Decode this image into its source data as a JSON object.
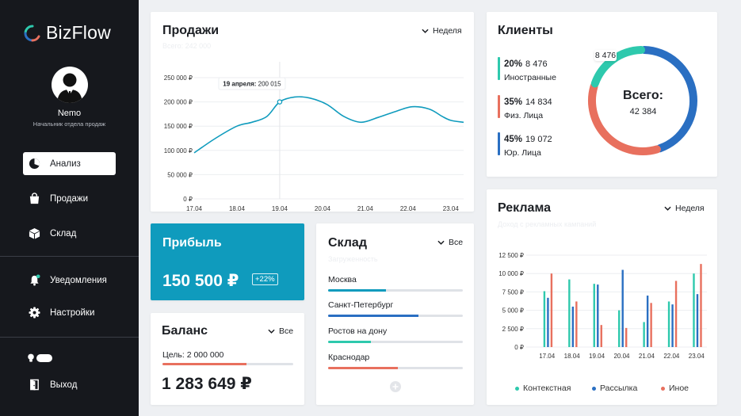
{
  "app": {
    "name": "BizFlow"
  },
  "user": {
    "name": "Nemo",
    "role": "Начальник отдела продаж"
  },
  "nav": {
    "analysis": "Анализ",
    "sales": "Продажи",
    "warehouse": "Склад",
    "notifications": "Уведомления",
    "settings": "Настройки",
    "logout": "Выход"
  },
  "sales": {
    "title": "Продажи",
    "subtitle": "Всего: 242 000",
    "period": "Неделя",
    "tooltip_date": "19 апреля:",
    "tooltip_value": "200 015",
    "y_labels": [
      "250 000 ₽",
      "200 000 ₽",
      "150 000 ₽",
      "100 000 ₽",
      "50 000 ₽",
      "0 ₽"
    ]
  },
  "clients": {
    "title": "Клиенты",
    "total_label": "Всего:",
    "total_value": "42 384",
    "callout": "8 476",
    "items": [
      {
        "pct": "20%",
        "count": "8 476",
        "label": "Иностранные",
        "color": "#2ec9ad"
      },
      {
        "pct": "35%",
        "count": "14 834",
        "label": "Физ. Лица",
        "color": "#e8705e"
      },
      {
        "pct": "45%",
        "count": "19 072",
        "label": "Юр. Лица",
        "color": "#2a6fc2"
      }
    ]
  },
  "profit": {
    "title": "Прибыль",
    "value": "150 500 ₽",
    "badge": "+22%",
    "color": "#0f9bbd"
  },
  "balance": {
    "title": "Баланс",
    "filter": "Все",
    "goal": "Цель: 2 000 000",
    "value": "1 283 649 ₽",
    "progress": 0.64
  },
  "warehouse": {
    "title": "Склад",
    "subtitle": "Загруженность",
    "filter": "Все",
    "items": [
      {
        "name": "Москва",
        "level": 0.43,
        "color": "#0f9bbd"
      },
      {
        "name": "Санкт-Петербург",
        "level": 0.67,
        "color": "#2a6fc2"
      },
      {
        "name": "Ростов на дону",
        "level": 0.32,
        "color": "#2ec9ad"
      },
      {
        "name": "Краснодар",
        "level": 0.52,
        "color": "#e8705e"
      }
    ]
  },
  "ads": {
    "title": "Реклама",
    "subtitle": "Доход с рекламных кампаний",
    "period": "Неделя"
  },
  "chart_data": [
    {
      "type": "line",
      "title": "Продажи",
      "x": [
        "17.04",
        "18.04",
        "19.04",
        "20.04",
        "21.04",
        "22.04",
        "23.04"
      ],
      "points": [
        [
          17.0,
          95000
        ],
        [
          17.5,
          125000
        ],
        [
          18.0,
          150000
        ],
        [
          18.35,
          158000
        ],
        [
          18.7,
          170000
        ],
        [
          19.0,
          200015
        ],
        [
          19.35,
          210000
        ],
        [
          19.7,
          208000
        ],
        [
          20.1,
          195000
        ],
        [
          20.5,
          170000
        ],
        [
          20.9,
          158000
        ],
        [
          21.3,
          168000
        ],
        [
          21.7,
          180000
        ],
        [
          22.1,
          190000
        ],
        [
          22.5,
          185000
        ],
        [
          22.8,
          170000
        ],
        [
          23.0,
          162000
        ],
        [
          23.3,
          158000
        ]
      ],
      "highlight": {
        "x": 19.0,
        "y": 200015,
        "label": "19 апреля: 200 015"
      },
      "ylim": [
        0,
        250000
      ],
      "color": "#0f9bbd"
    },
    {
      "type": "pie",
      "title": "Клиенты",
      "labels": [
        "Иностранные",
        "Физ. Лица",
        "Юр. Лица"
      ],
      "values": [
        8476,
        14834,
        19072
      ],
      "colors": [
        "#2ec9ad",
        "#e8705e",
        "#2a6fc2"
      ]
    },
    {
      "type": "bar",
      "title": "Реклама",
      "categories": [
        "17.04",
        "18.04",
        "19.04",
        "20.04",
        "21.04",
        "22.04",
        "23.04"
      ],
      "series": [
        {
          "name": "Контекстная",
          "color": "#2ec9ad",
          "values": [
            7600,
            9200,
            8600,
            5000,
            3400,
            6200,
            10000
          ]
        },
        {
          "name": "Рассылка",
          "color": "#2a6fc2",
          "values": [
            6700,
            5500,
            8500,
            10500,
            7000,
            5800,
            7200
          ]
        },
        {
          "name": "Иное",
          "color": "#e8705e",
          "values": [
            10000,
            6200,
            3000,
            2600,
            6000,
            9000,
            11300
          ]
        }
      ],
      "y_ticks": [
        "12 500 ₽",
        "10 000 ₽",
        "7 500 ₽",
        "5 000 ₽",
        "2 500 ₽",
        "0 ₽"
      ],
      "ylim": [
        0,
        12500
      ]
    }
  ]
}
